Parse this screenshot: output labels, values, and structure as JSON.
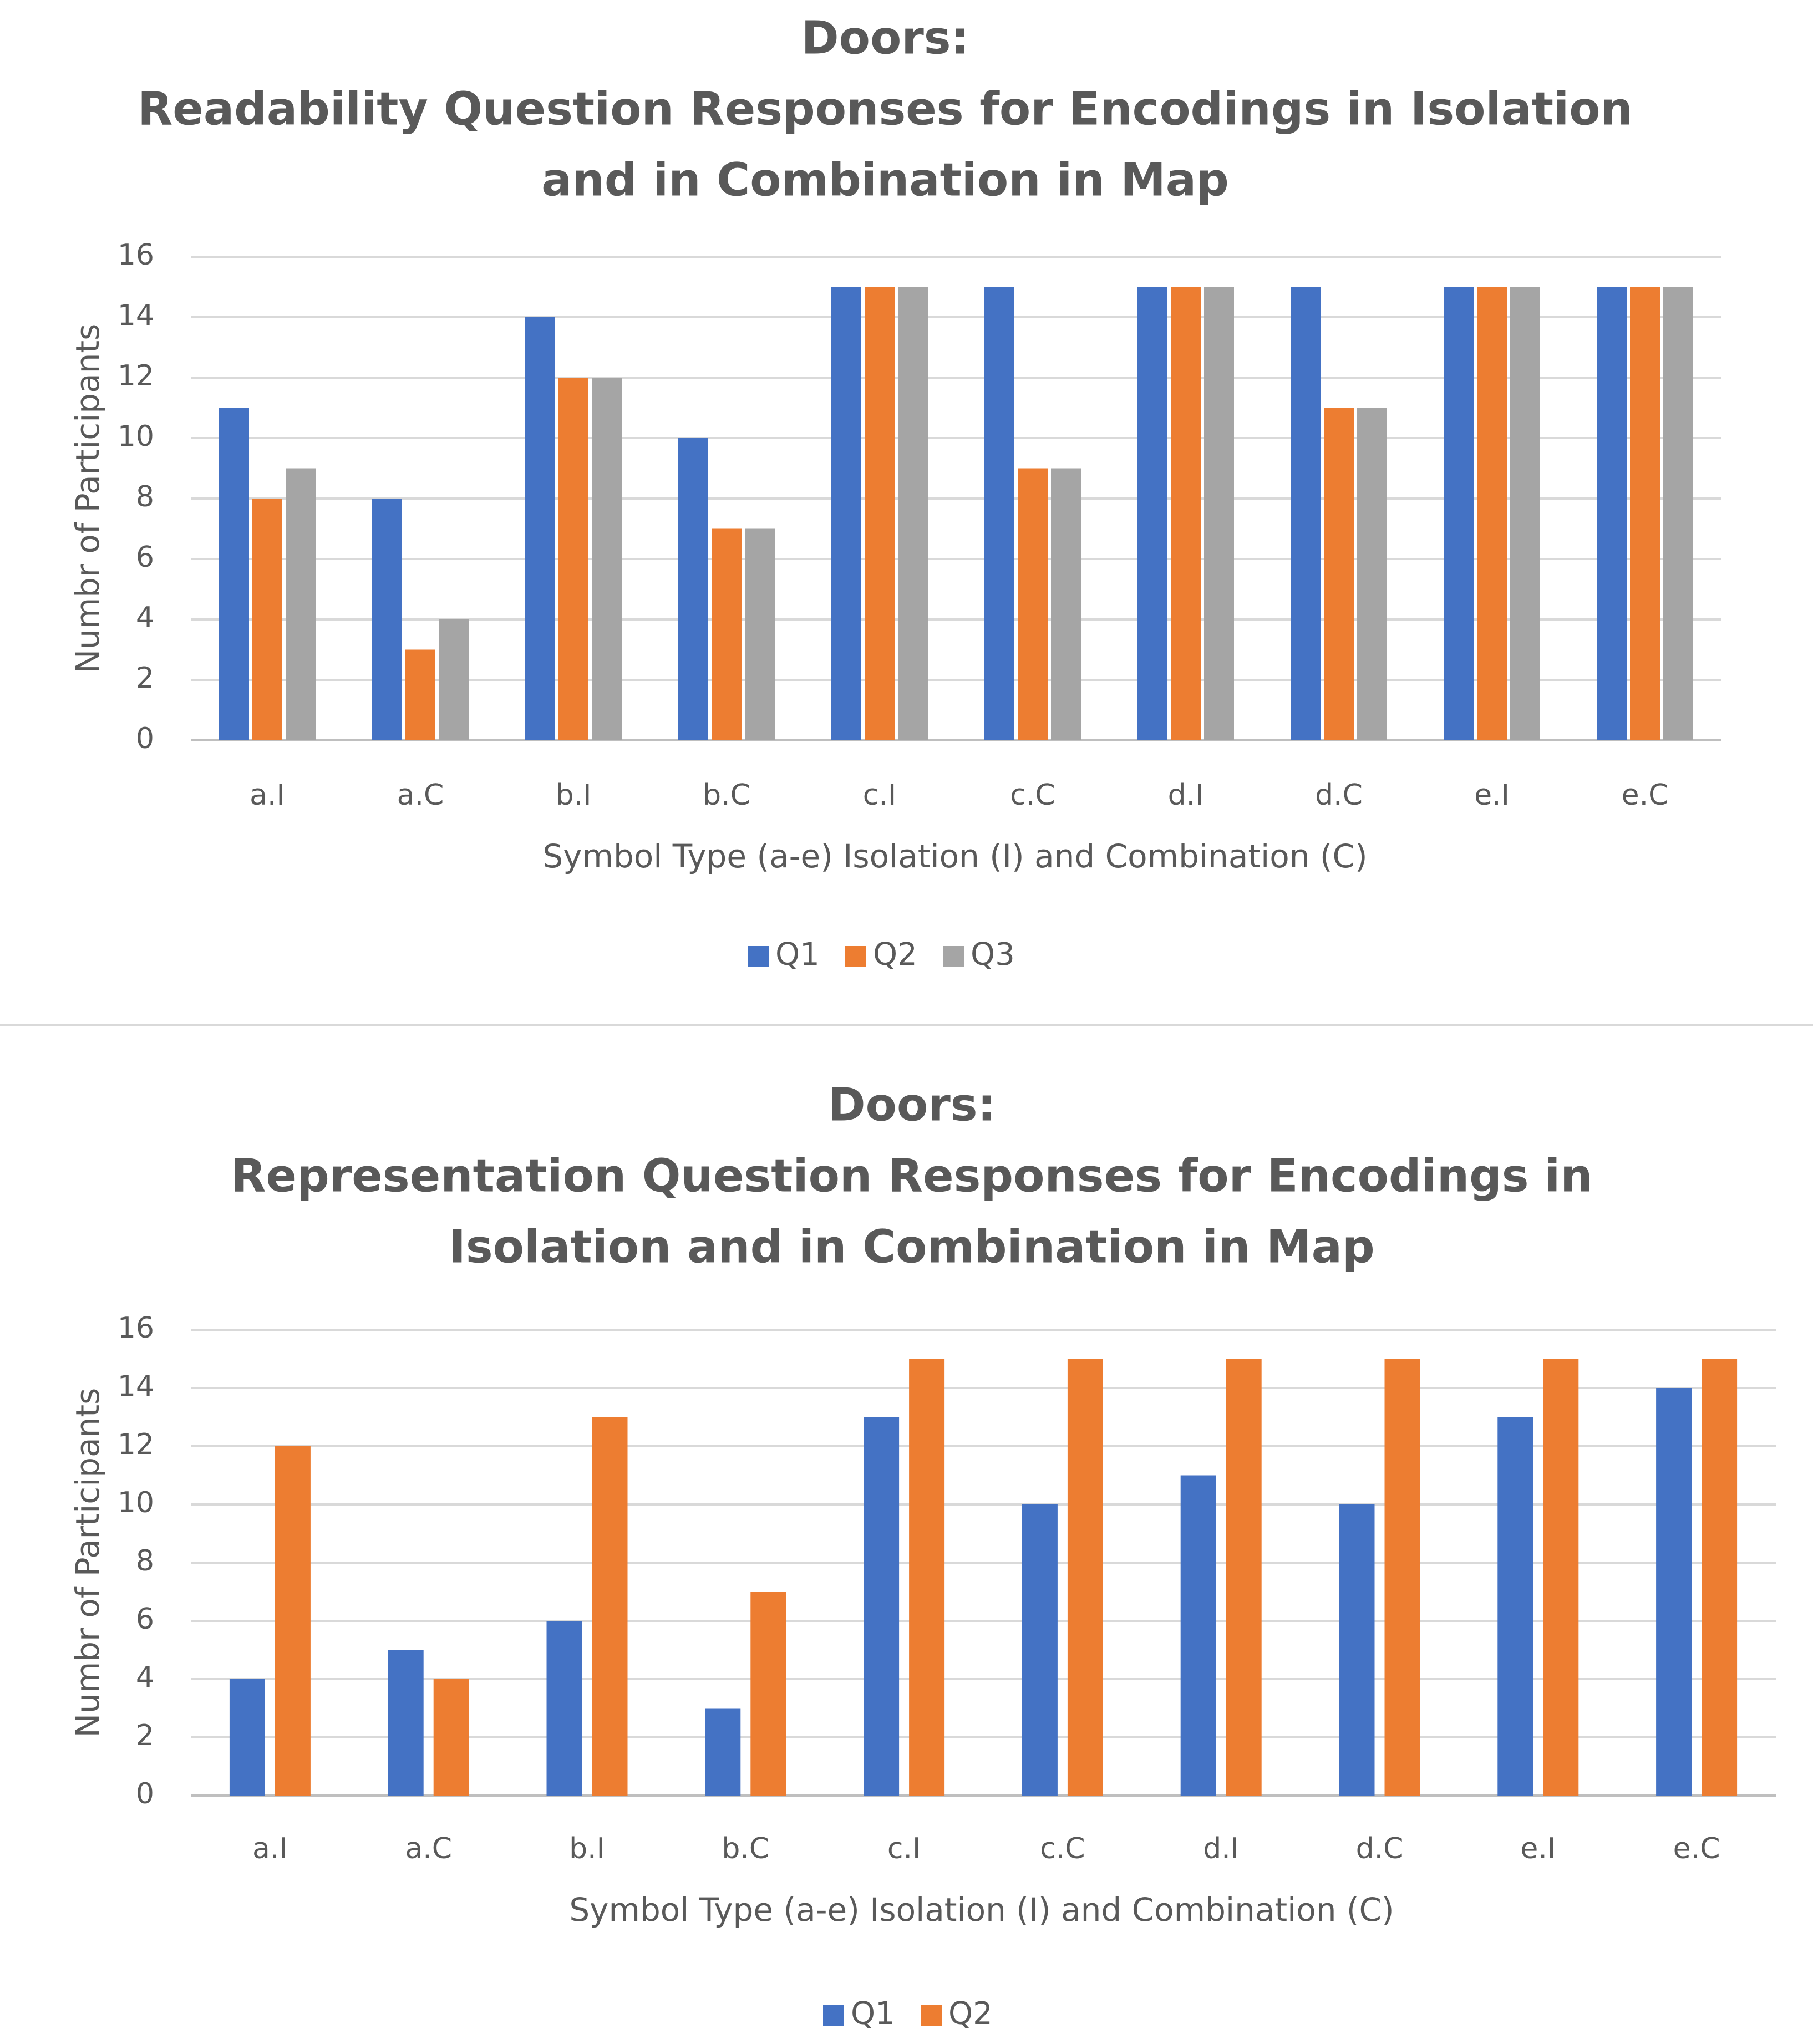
{
  "chart_data": [
    {
      "type": "bar",
      "title": [
        "Doors:",
        "Readability Question Responses for Encodings in Isolation",
        "and in Combination in Map"
      ],
      "xlabel": "Symbol Type (a-e) Isolation (I) and Combination (C)",
      "ylabel": "Numbr of Participants",
      "ylim": [
        0,
        16
      ],
      "yticks": [
        0,
        2,
        4,
        6,
        8,
        10,
        12,
        14,
        16
      ],
      "grid": true,
      "legend_position": "bottom",
      "categories": [
        "a.I",
        "a.C",
        "b.I",
        "b.C",
        "c.I",
        "c.C",
        "d.I",
        "d.C",
        "e.I",
        "e.C"
      ],
      "series": [
        {
          "name": "Q1",
          "color": "#4472C4",
          "values": [
            11,
            8,
            14,
            10,
            15,
            15,
            15,
            15,
            15,
            15
          ]
        },
        {
          "name": "Q2",
          "color": "#ED7D31",
          "values": [
            8,
            3,
            12,
            7,
            15,
            9,
            15,
            11,
            15,
            15
          ]
        },
        {
          "name": "Q3",
          "color": "#A5A5A5",
          "values": [
            9,
            4,
            12,
            7,
            15,
            9,
            15,
            11,
            15,
            15
          ]
        }
      ]
    },
    {
      "type": "bar",
      "title": [
        "Doors:",
        "Representation Question Responses for Encodings in",
        "Isolation and in Combination in Map"
      ],
      "xlabel": "Symbol Type (a-e) Isolation (I) and Combination (C)",
      "ylabel": "Numbr of Participants",
      "ylim": [
        0,
        16
      ],
      "yticks": [
        0,
        2,
        4,
        6,
        8,
        10,
        12,
        14,
        16
      ],
      "grid": true,
      "legend_position": "bottom",
      "categories": [
        "a.I",
        "a.C",
        "b.I",
        "b.C",
        "c.I",
        "c.C",
        "d.I",
        "d.C",
        "e.I",
        "e.C"
      ],
      "series": [
        {
          "name": "Q1",
          "color": "#4472C4",
          "values": [
            4,
            5,
            6,
            3,
            13,
            10,
            11,
            10,
            13,
            14
          ]
        },
        {
          "name": "Q2",
          "color": "#ED7D31",
          "values": [
            12,
            4,
            13,
            7,
            15,
            15,
            15,
            15,
            15,
            15
          ]
        }
      ]
    }
  ],
  "colors": {
    "gridline": "#D9D9D9",
    "divider": "#D9D9D9",
    "text": "#595959"
  }
}
